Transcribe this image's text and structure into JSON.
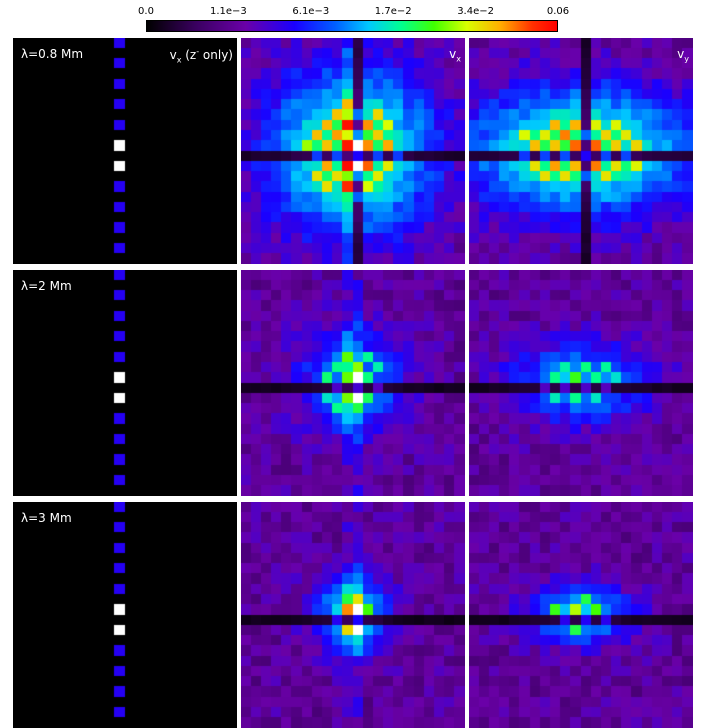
{
  "colorbar": {
    "ticks": [
      "0.0",
      "1.1e−3",
      "6.1e−3",
      "1.7e−2",
      "3.4e−2",
      "0.06"
    ],
    "tick_positions": [
      0.0,
      0.2,
      0.4,
      0.6,
      0.8,
      1.0
    ],
    "colormap": [
      "#000000",
      "#3a0060",
      "#6a00a8",
      "#1a00ff",
      "#0060ff",
      "#00c8ff",
      "#00ff90",
      "#40ff00",
      "#d8ff00",
      "#ffb000",
      "#ff3000",
      "#ff0000"
    ]
  },
  "chart_data": {
    "type": "heatmap",
    "value_range": [
      0.0,
      0.06
    ],
    "grid_size": 22,
    "rows": [
      {
        "label": "λ=0.8 Mm",
        "panels": [
          {
            "label_main": "v",
            "label_sub": "x",
            "label_extra": " (z",
            "label_sup": "-",
            "label_tail": " only)"
          },
          {
            "label_main": "v",
            "label_sub": "x"
          },
          {
            "label_main": "v",
            "label_sub": "y"
          }
        ],
        "intensity": 1.0,
        "spread": 5.5
      },
      {
        "label": "λ=2 Mm",
        "panels": [
          {
            "label_main": "",
            "label_sub": ""
          },
          {
            "label_main": "",
            "label_sub": ""
          },
          {
            "label_main": "",
            "label_sub": ""
          }
        ],
        "intensity": 0.6,
        "spread": 3.5
      },
      {
        "label": "λ=3 Mm",
        "panels": [
          {
            "label_main": "",
            "label_sub": ""
          },
          {
            "label_main": "",
            "label_sub": ""
          },
          {
            "label_main": "",
            "label_sub": ""
          }
        ],
        "intensity": 0.75,
        "spread": 2.5
      }
    ]
  }
}
